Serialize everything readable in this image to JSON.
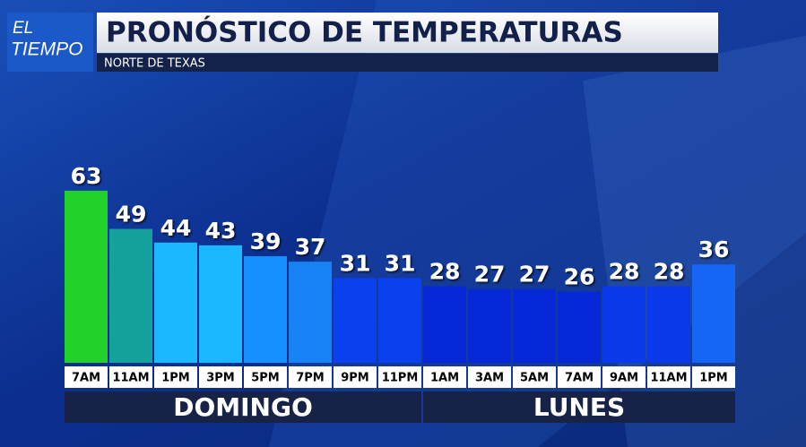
{
  "chart_data": {
    "type": "bar",
    "logo": [
      "EL",
      "TIEMPO"
    ],
    "title": "PRONÓSTICO DE TEMPERATURAS",
    "subtitle": "NORTE DE TEXAS",
    "groups": [
      {
        "name": "DOMINGO",
        "categories": [
          "7AM",
          "11AM",
          "1PM",
          "3PM",
          "5PM",
          "7PM",
          "9PM",
          "11PM"
        ],
        "values": [
          63,
          49,
          44,
          43,
          39,
          37,
          31,
          31
        ],
        "colors": [
          "#22d02a",
          "#16a29c",
          "#1cb8ff",
          "#1cb8ff",
          "#1690ff",
          "#1682f4",
          "#0b40ee",
          "#0b40ee"
        ]
      },
      {
        "name": "LUNES",
        "categories": [
          "1AM",
          "3AM",
          "5AM",
          "7AM",
          "9AM",
          "11AM",
          "1PM"
        ],
        "values": [
          28,
          27,
          27,
          26,
          28,
          28,
          36
        ],
        "colors": [
          "#0728d6",
          "#0728d6",
          "#0728d6",
          "#0728d6",
          "#0b3aec",
          "#0b3aec",
          "#1566f4"
        ]
      }
    ]
  }
}
